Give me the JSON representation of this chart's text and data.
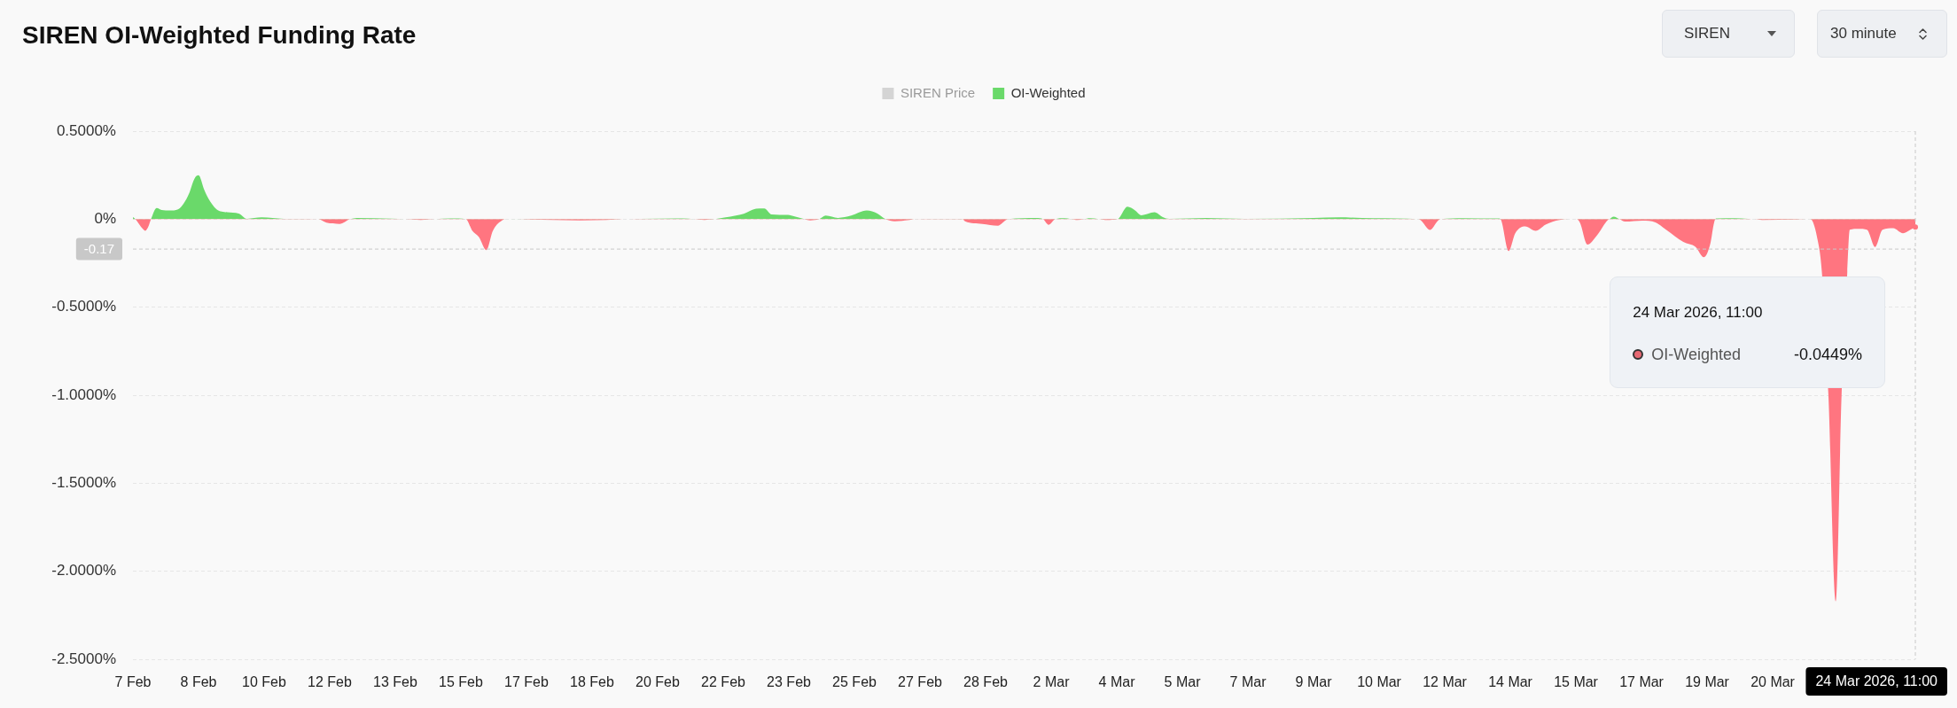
{
  "chart_data": {
    "type": "area",
    "title": "SIREN OI-Weighted Funding Rate",
    "x": [
      "2026-02-07T04:00",
      "2026-02-07T05:30",
      "2026-02-07T09:30",
      "2026-02-07T11:30",
      "2026-02-07T13:30",
      "2026-02-07T15:00",
      "2026-02-07T18:30",
      "2026-02-07T21:30",
      "2026-02-08T02:30",
      "2026-02-08T07:30",
      "2026-02-08T11:00",
      "2026-02-08T14:00",
      "2026-02-08T17:30",
      "2026-02-08T20:00",
      "2026-02-08T23:30",
      "2026-02-09T02:00",
      "2026-02-09T07:00",
      "2026-02-09T13:30",
      "2026-02-09T20:30",
      "2026-02-10T01:30",
      "2026-02-10T10:30",
      "2026-02-11T00:00",
      "2026-02-11T21:00",
      "2026-02-12T02:00",
      "2026-02-12T10:00",
      "2026-02-12T16:30",
      "2026-02-12T20:30",
      "2026-02-13T17:30",
      "2026-02-14T02:00",
      "2026-02-14T11:30",
      "2026-02-14T20:00",
      "2026-02-15T06:00",
      "2026-02-15T15:00",
      "2026-02-15T19:00",
      "2026-02-15T23:00",
      "2026-02-16T03:30",
      "2026-02-16T07:30",
      "2026-02-16T13:30",
      "2026-02-16T16:00",
      "2026-02-17T21:00",
      "2026-02-18T12:30",
      "2026-02-19T04:30",
      "2026-02-19T15:00",
      "2026-02-20T01:30",
      "2026-02-21T03:30",
      "2026-02-21T10:00",
      "2026-02-21T16:30",
      "2026-02-21T23:00",
      "2026-02-22T05:30",
      "2026-02-22T16:30",
      "2026-02-23T00:00",
      "2026-02-23T05:00",
      "2026-02-23T09:30",
      "2026-02-23T19:30",
      "2026-02-23T21:30",
      "2026-02-24T05:30",
      "2026-02-24T09:00",
      "2026-02-24T14:30",
      "2026-02-24T18:30",
      "2026-02-25T02:00",
      "2026-02-25T10:00",
      "2026-02-25T19:30",
      "2026-02-26T02:00",
      "2026-02-26T07:00",
      "2026-02-26T12:30",
      "2026-02-26T21:30",
      "2026-02-27T00:30",
      "2026-02-28T05:00",
      "2026-02-28T06:00",
      "2026-02-28T07:30",
      "2026-02-28T18:00",
      "2026-03-01T03:30",
      "2026-03-01T08:30",
      "2026-03-01T10:00",
      "2026-03-02T03:00",
      "2026-03-02T07:00",
      "2026-03-02T10:30",
      "2026-03-02T14:30",
      "2026-03-02T20:00",
      "2026-03-03T00:00",
      "2026-03-03T04:00",
      "2026-03-03T08:00",
      "2026-03-03T11:30",
      "2026-03-03T17:00",
      "2026-03-03T22:00",
      "2026-03-04T04:30",
      "2026-03-04T10:30",
      "2026-03-04T15:00",
      "2026-03-04T19:00",
      "2026-03-05T03:00",
      "2026-03-05T08:00",
      "2026-03-05T12:00",
      "2026-03-06T10:30",
      "2026-03-07T10:00",
      "2026-03-09T04:00",
      "2026-03-09T19:30",
      "2026-03-10T16:30",
      "2026-03-11T20:00",
      "2026-03-11T21:30",
      "2026-03-12T03:00",
      "2026-03-12T08:00",
      "2026-03-12T09:30",
      "2026-03-12T23:30",
      "2026-03-13T20:30",
      "2026-03-13T22:00",
      "2026-03-14T03:00",
      "2026-03-14T07:00",
      "2026-03-14T13:00",
      "2026-03-14T19:30",
      "2026-03-15T01:30",
      "2026-03-15T10:00",
      "2026-03-15T20:30",
      "2026-03-15T22:30",
      "2026-03-16T03:00",
      "2026-03-16T09:00",
      "2026-03-16T15:30",
      "2026-03-16T16:30",
      "2026-03-16T19:00",
      "2026-03-16T22:30",
      "2026-03-17T02:00",
      "2026-03-17T12:30",
      "2026-03-17T20:30",
      "2026-03-18T03:00",
      "2026-03-18T13:30",
      "2026-03-18T21:00",
      "2026-03-19T02:00",
      "2026-03-19T06:00",
      "2026-03-19T08:00",
      "2026-03-19T09:00",
      "2026-03-19T10:00",
      "2026-03-19T21:00",
      "2026-03-20T05:00",
      "2026-03-20T09:00",
      "2026-03-20T13:30",
      "2026-03-21T10:30",
      "2026-03-21T19:00",
      "2026-03-21T23:00",
      "2026-03-22T02:00",
      "2026-03-22T06:00",
      "2026-03-22T10:30",
      "2026-03-22T14:00",
      "2026-03-22T17:30",
      "2026-03-22T19:00",
      "2026-03-23T00:30",
      "2026-03-23T05:30",
      "2026-03-23T10:30",
      "2026-03-23T15:00",
      "2026-03-23T21:30",
      "2026-03-24T03:30",
      "2026-03-24T08:00",
      "2026-03-24T11:00"
    ],
    "series": [
      {
        "name": "SIREN Price",
        "color": "#d4d4d4",
        "values": [
          null,
          null,
          null,
          null,
          null,
          null,
          null,
          null,
          null,
          null,
          null,
          null,
          null,
          null,
          null,
          null,
          null,
          null,
          null,
          null,
          null,
          null,
          null,
          null,
          null,
          null,
          null,
          null,
          null,
          null,
          null,
          null,
          null,
          null,
          null,
          null,
          null,
          null,
          null,
          null,
          null,
          null,
          null,
          null,
          null,
          null,
          null,
          null,
          null,
          null,
          null,
          null,
          null,
          null,
          null,
          null,
          null,
          null,
          null,
          null,
          null,
          null,
          null,
          null,
          null,
          null,
          null,
          null,
          null,
          null,
          null,
          null,
          null,
          null,
          null,
          null,
          null,
          null,
          null,
          null,
          null,
          null,
          null,
          null,
          null,
          null,
          null,
          null,
          null,
          null,
          null,
          null,
          null,
          null,
          null,
          null,
          null,
          null,
          null,
          null,
          null,
          null,
          null,
          null,
          null,
          null,
          null,
          null,
          null,
          null,
          null,
          null,
          null,
          null,
          null,
          null,
          null,
          null,
          null,
          null,
          null,
          null,
          null,
          null,
          null,
          null,
          null,
          null,
          null,
          null,
          null,
          null,
          null,
          null,
          null,
          null,
          null,
          null,
          null,
          null,
          null,
          null,
          null,
          null,
          null,
          null,
          null,
          null,
          null,
          null,
          null
        ]
      },
      {
        "name": "OI-Weighted",
        "color": "#6ad96a",
        "values": [
          0.012,
          0,
          -0.05,
          -0.066,
          -0.04,
          0,
          0.063,
          0.052,
          0.049,
          0.056,
          0.09,
          0.141,
          0.23,
          0.249,
          0.166,
          0.117,
          0.056,
          0.039,
          0.032,
          0.002,
          0.01,
          0.002,
          0,
          -0.02,
          -0.027,
          0,
          0.007,
          0.003,
          0,
          -0.004,
          0,
          0.004,
          0,
          -0.066,
          -0.102,
          -0.176,
          -0.066,
          -0.005,
          0,
          -0.005,
          -0.007,
          -0.005,
          0,
          0.002,
          0.004,
          0,
          -0.004,
          0,
          0.01,
          0.03,
          0.059,
          0.061,
          0.027,
          0.024,
          0.02,
          0,
          -0.007,
          0,
          0.02,
          0.007,
          0.02,
          0.049,
          0.032,
          0,
          -0.012,
          -0.005,
          0,
          0.002,
          0,
          -0.012,
          -0.027,
          -0.037,
          -0.005,
          0,
          0.007,
          0,
          -0.032,
          0,
          0.005,
          0,
          -0.005,
          0,
          0.005,
          0,
          -0.005,
          0,
          0.071,
          0.051,
          0.022,
          0.039,
          0.012,
          0.002,
          0.007,
          0.002,
          0.007,
          0.01,
          0.005,
          0,
          -0.007,
          -0.061,
          -0.007,
          0,
          0.006,
          0.004,
          0,
          -0.181,
          -0.08,
          -0.041,
          -0.066,
          -0.031,
          -0.004,
          0,
          -0.021,
          -0.144,
          -0.09,
          -0.004,
          0,
          0.014,
          0,
          -0.014,
          -0.008,
          -0.018,
          -0.06,
          -0.129,
          -0.158,
          -0.216,
          -0.138,
          -0.031,
          0,
          0.004,
          0.006,
          0.002,
          0,
          -0.004,
          -0.002,
          0,
          -0.1,
          -0.3,
          -1.0,
          -2.17,
          -1.0,
          -0.3,
          -0.06,
          -0.055,
          -0.06,
          -0.158,
          -0.06,
          -0.051,
          -0.08,
          -0.06,
          -0.0449
        ],
        "colors": [
          "#6ad96a",
          "#6ad96a",
          "#ff7580",
          "#ff7580",
          "#ff7580",
          "#6ad96a",
          "#6ad96a",
          "#6ad96a",
          "#6ad96a",
          "#6ad96a",
          "#6ad96a",
          "#6ad96a",
          "#6ad96a",
          "#6ad96a",
          "#6ad96a",
          "#6ad96a",
          "#6ad96a",
          "#6ad96a",
          "#6ad96a",
          "#6ad96a",
          "#6ad96a",
          "#6ad96a",
          "#6ad96a",
          "#ff7580",
          "#ff7580",
          "#6ad96a",
          "#6ad96a",
          "#6ad96a",
          "#6ad96a",
          "#ff7580",
          "#6ad96a",
          "#6ad96a",
          "#6ad96a",
          "#ff7580",
          "#ff7580",
          "#ff7580",
          "#ff7580",
          "#ff7580",
          "#6ad96a",
          "#ff7580",
          "#ff7580",
          "#ff7580",
          "#6ad96a",
          "#6ad96a",
          "#6ad96a",
          "#6ad96a",
          "#ff7580",
          "#6ad96a",
          "#6ad96a",
          "#6ad96a",
          "#6ad96a",
          "#6ad96a",
          "#6ad96a",
          "#6ad96a",
          "#6ad96a",
          "#6ad96a",
          "#ff7580",
          "#6ad96a",
          "#6ad96a",
          "#6ad96a",
          "#6ad96a",
          "#6ad96a",
          "#6ad96a",
          "#6ad96a",
          "#ff7580",
          "#ff7580",
          "#6ad96a",
          "#6ad96a",
          "#6ad96a",
          "#ff7580",
          "#ff7580",
          "#ff7580",
          "#ff7580",
          "#6ad96a",
          "#6ad96a",
          "#6ad96a",
          "#ff7580",
          "#6ad96a",
          "#6ad96a",
          "#6ad96a",
          "#ff7580",
          "#6ad96a",
          "#6ad96a",
          "#6ad96a",
          "#ff7580",
          "#6ad96a",
          "#6ad96a",
          "#6ad96a",
          "#6ad96a",
          "#6ad96a",
          "#6ad96a",
          "#6ad96a",
          "#6ad96a",
          "#6ad96a",
          "#6ad96a",
          "#6ad96a",
          "#6ad96a",
          "#6ad96a",
          "#ff7580",
          "#ff7580",
          "#ff7580",
          "#6ad96a",
          "#6ad96a",
          "#6ad96a",
          "#6ad96a",
          "#ff7580",
          "#ff7580",
          "#ff7580",
          "#ff7580",
          "#ff7580",
          "#ff7580",
          "#6ad96a",
          "#ff7580",
          "#ff7580",
          "#ff7580",
          "#ff7580",
          "#6ad96a",
          "#6ad96a",
          "#6ad96a",
          "#ff7580",
          "#ff7580",
          "#ff7580",
          "#ff7580",
          "#ff7580",
          "#ff7580",
          "#ff7580",
          "#ff7580",
          "#ff7580",
          "#6ad96a",
          "#6ad96a",
          "#6ad96a",
          "#6ad96a",
          "#6ad96a",
          "#ff7580",
          "#ff7580",
          "#6ad96a",
          "#ff7580",
          "#ff7580",
          "#ff7580",
          "#ff7580",
          "#ff7580",
          "#ff7580",
          "#ff7580",
          "#ff7580",
          "#ff7580",
          "#ff7580",
          "#ff7580",
          "#ff7580",
          "#ff7580",
          "#ff7580",
          "#ff7580"
        ]
      }
    ],
    "xlim": [
      "2026-02-07T04:00",
      "2026-03-24T11:00"
    ],
    "xticks": [
      {
        "value": "2026-02-07T04:00",
        "label": "7 Feb"
      },
      {
        "value": "2026-02-08T20:00",
        "label": "8 Feb"
      },
      {
        "value": "2026-02-10T12:00",
        "label": "10 Feb"
      },
      {
        "value": "2026-02-12T04:00",
        "label": "12 Feb"
      },
      {
        "value": "2026-02-13T20:00",
        "label": "13 Feb"
      },
      {
        "value": "2026-02-15T12:00",
        "label": "15 Feb"
      },
      {
        "value": "2026-02-17T04:00",
        "label": "17 Feb"
      },
      {
        "value": "2026-02-18T20:00",
        "label": "18 Feb"
      },
      {
        "value": "2026-02-20T12:00",
        "label": "20 Feb"
      },
      {
        "value": "2026-02-22T04:00",
        "label": "22 Feb"
      },
      {
        "value": "2026-02-23T20:00",
        "label": "23 Feb"
      },
      {
        "value": "2026-02-25T12:00",
        "label": "25 Feb"
      },
      {
        "value": "2026-02-27T04:00",
        "label": "27 Feb"
      },
      {
        "value": "2026-02-28T20:00",
        "label": "28 Feb"
      },
      {
        "value": "2026-03-02T12:00",
        "label": "2 Mar"
      },
      {
        "value": "2026-03-04T04:00",
        "label": "4 Mar"
      },
      {
        "value": "2026-03-05T20:00",
        "label": "5 Mar"
      },
      {
        "value": "2026-03-07T12:00",
        "label": "7 Mar"
      },
      {
        "value": "2026-03-09T04:00",
        "label": "9 Mar"
      },
      {
        "value": "2026-03-10T20:00",
        "label": "10 Mar"
      },
      {
        "value": "2026-03-12T12:00",
        "label": "12 Mar"
      },
      {
        "value": "2026-03-14T04:00",
        "label": "14 Mar"
      },
      {
        "value": "2026-03-15T20:00",
        "label": "15 Mar"
      },
      {
        "value": "2026-03-17T12:00",
        "label": "17 Mar"
      },
      {
        "value": "2026-03-19T04:00",
        "label": "19 Mar"
      },
      {
        "value": "2026-03-20T20:00",
        "label": "20 Mar"
      }
    ],
    "ylim": [
      -2.5,
      0.5
    ],
    "yticks": [
      {
        "value": -2.5,
        "label": "-2.5000%"
      },
      {
        "value": -2,
        "label": "-2.0000%"
      },
      {
        "value": -1.5,
        "label": "-1.5000%"
      },
      {
        "value": -1,
        "label": "-1.0000%"
      },
      {
        "value": -0.5,
        "label": "-0.5000%"
      },
      {
        "value": 0,
        "label": "0%"
      },
      {
        "value": 0.5,
        "label": "0.5000%"
      }
    ],
    "grid": "y",
    "legend": "top",
    "ref_lines": [
      {
        "axis": "y",
        "value": -0.17,
        "label": "-0.17",
        "color": "#c8c8c8",
        "line_style": "dashed"
      },
      {
        "axis": "x",
        "value": "2026-03-24T11:00",
        "label": "24 Mar 2026, 11:00",
        "color": "#c8c8c8",
        "line_style": "dashed"
      }
    ],
    "annotations": [
      "24 Mar 2026, 11:00",
      "-0.0449%",
      "SIREN",
      "30 minute"
    ]
  }
}
